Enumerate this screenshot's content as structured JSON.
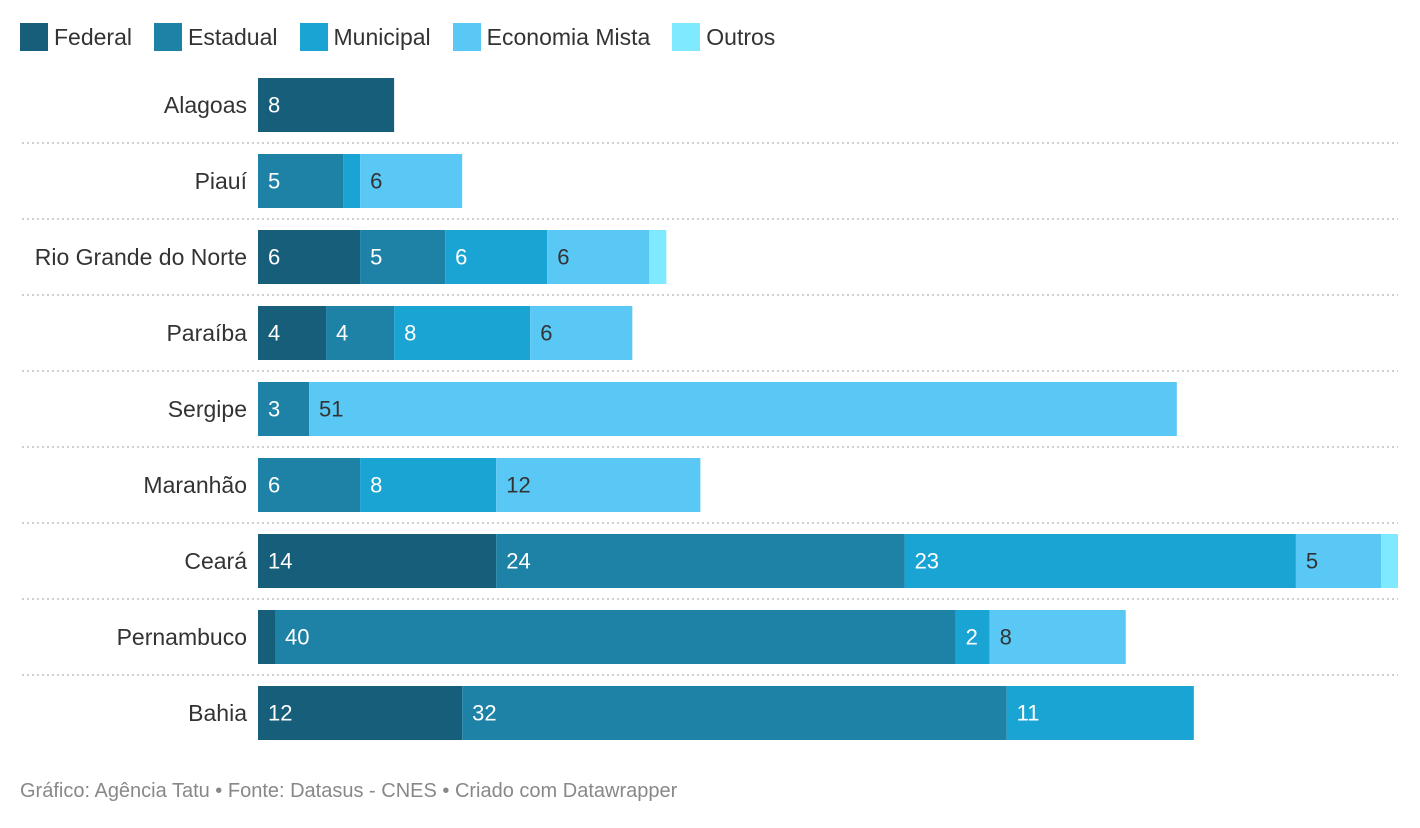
{
  "chart_data": {
    "type": "bar",
    "orientation": "horizontal",
    "stacked": true,
    "categories": [
      "Alagoas",
      "Piauí",
      "Rio Grande do Norte",
      "Paraíba",
      "Sergipe",
      "Maranhão",
      "Ceará",
      "Pernambuco",
      "Bahia"
    ],
    "series": [
      {
        "name": "Federal",
        "color": "#175e7a",
        "values": [
          8,
          0,
          6,
          4,
          0,
          0,
          14,
          1,
          12
        ]
      },
      {
        "name": "Estadual",
        "color": "#1d82a5",
        "values": [
          0,
          5,
          5,
          4,
          3,
          6,
          24,
          40,
          32
        ]
      },
      {
        "name": "Municipal",
        "color": "#1aa4d3",
        "values": [
          0,
          1,
          6,
          8,
          0,
          8,
          23,
          2,
          11
        ]
      },
      {
        "name": "Economia Mista",
        "color": "#59c8f5",
        "values": [
          0,
          6,
          6,
          6,
          51,
          12,
          5,
          8,
          0
        ]
      },
      {
        "name": "Outros",
        "color": "#7fe9ff",
        "values": [
          0,
          0,
          1,
          0,
          0,
          0,
          1,
          0,
          0
        ]
      }
    ],
    "labeled_values": [
      [
        true,
        false,
        false,
        false,
        false
      ],
      [
        false,
        true,
        false,
        true,
        false
      ],
      [
        true,
        true,
        true,
        true,
        false
      ],
      [
        true,
        true,
        true,
        true,
        false
      ],
      [
        false,
        true,
        false,
        true,
        false
      ],
      [
        false,
        true,
        true,
        true,
        false
      ],
      [
        true,
        true,
        true,
        true,
        false
      ],
      [
        false,
        true,
        true,
        true,
        false
      ],
      [
        true,
        true,
        true,
        false,
        false
      ]
    ],
    "xlim": [
      0,
      67
    ],
    "legend_position": "top-left",
    "grid": false
  },
  "footer": {
    "text": "Gráfico: Agência Tatu • Fonte: Datasus - CNES • Criado com Datawrapper"
  }
}
